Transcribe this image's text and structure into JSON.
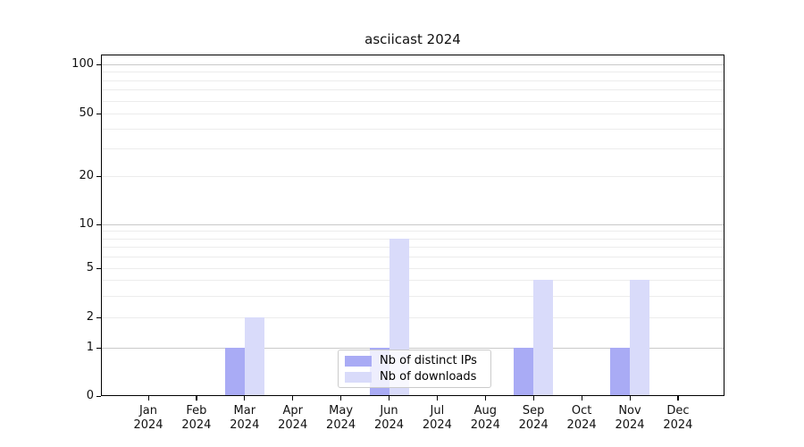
{
  "title": "asciicast 2024",
  "chart_data": {
    "type": "bar",
    "title": "asciicast 2024",
    "categories": [
      "Jan 2024",
      "Feb 2024",
      "Mar 2024",
      "Apr 2024",
      "May 2024",
      "Jun 2024",
      "Jul 2024",
      "Aug 2024",
      "Sep 2024",
      "Oct 2024",
      "Nov 2024",
      "Dec 2024"
    ],
    "x_tick_labels": [
      {
        "month": "Jan",
        "year": "2024"
      },
      {
        "month": "Feb",
        "year": "2024"
      },
      {
        "month": "Mar",
        "year": "2024"
      },
      {
        "month": "Apr",
        "year": "2024"
      },
      {
        "month": "May",
        "year": "2024"
      },
      {
        "month": "Jun",
        "year": "2024"
      },
      {
        "month": "Jul",
        "year": "2024"
      },
      {
        "month": "Aug",
        "year": "2024"
      },
      {
        "month": "Sep",
        "year": "2024"
      },
      {
        "month": "Oct",
        "year": "2024"
      },
      {
        "month": "Nov",
        "year": "2024"
      },
      {
        "month": "Dec",
        "year": "2024"
      }
    ],
    "series": [
      {
        "name": "Nb of distinct IPs",
        "color": "#a9abf5",
        "values": [
          0,
          0,
          1,
          0,
          0,
          1,
          0,
          0,
          1,
          0,
          1,
          0
        ]
      },
      {
        "name": "Nb of downloads",
        "color": "#d9dbfa",
        "values": [
          0,
          0,
          2,
          0,
          0,
          8,
          0,
          0,
          4,
          0,
          4,
          0
        ]
      }
    ],
    "yscale": "symlog",
    "ylim": [
      0,
      115
    ],
    "y_tick_values": [
      0,
      1,
      2,
      5,
      10,
      20,
      50,
      100
    ],
    "y_tick_labels": [
      "0",
      "1",
      "2",
      "5",
      "10",
      "20",
      "50",
      "100"
    ],
    "y_major_gridlines": [
      1,
      10,
      100
    ],
    "y_minor_gridlines": [
      2,
      3,
      4,
      5,
      6,
      7,
      8,
      9,
      20,
      30,
      40,
      50,
      60,
      70,
      80,
      90
    ],
    "grid": true,
    "legend": {
      "position": "lower center"
    }
  },
  "colors": {
    "series_ips": "#a9abf5",
    "series_downloads": "#d9dbfa",
    "grid_major": "#c9c9c9",
    "grid_minor": "#ececec",
    "spine": "#000000"
  }
}
